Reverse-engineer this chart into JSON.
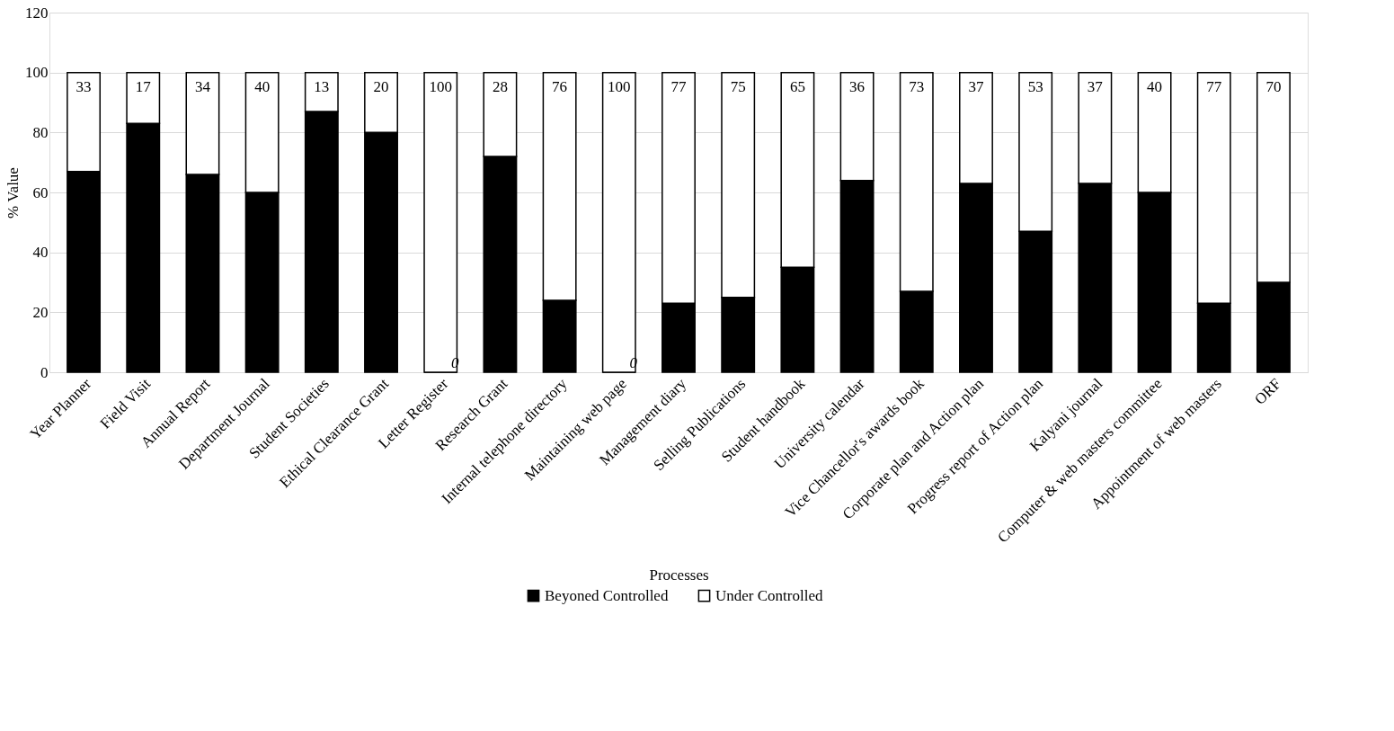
{
  "chart_data": {
    "type": "bar",
    "stacked": true,
    "xlabel": "Processes",
    "ylabel": "% Value",
    "categories": [
      "Year Planner",
      "Field Visit",
      "Annual Report",
      "Department Journal",
      "Student Societies",
      "Ethical Clearance Grant",
      "Letter Register",
      "Research Grant",
      "Internal telephone directory",
      "Maintaining web page",
      "Management diary",
      "Selling Publications",
      "Student handbook",
      "University calendar",
      "Vice Chancellor's awards book",
      "Corporate plan and Action plan",
      "Progress report of Action plan",
      "Kalyani journal",
      "Computer & web masters committee",
      "Appointment of web masters",
      "ORF"
    ],
    "series": [
      {
        "name": "Beyoned Controlled",
        "color": "#000000",
        "values": [
          67,
          83,
          66,
          60,
          87,
          80,
          0,
          72,
          24,
          0,
          23,
          25,
          35,
          64,
          27,
          63,
          47,
          63,
          60,
          23,
          30
        ],
        "value_labels": [
          null,
          null,
          null,
          null,
          null,
          null,
          "0",
          null,
          null,
          "0",
          null,
          null,
          null,
          null,
          null,
          null,
          null,
          null,
          null,
          null,
          null
        ]
      },
      {
        "name": "Under Controlled",
        "color": "#ffffff",
        "values": [
          33,
          17,
          34,
          40,
          13,
          20,
          100,
          28,
          76,
          100,
          77,
          75,
          65,
          36,
          73,
          37,
          53,
          37,
          40,
          77,
          70
        ],
        "value_labels": [
          "33",
          "17",
          "34",
          "40",
          "13",
          "20",
          "100",
          "28",
          "76",
          "100",
          "77",
          "75",
          "65",
          "36",
          "73",
          "37",
          "53",
          "37",
          "40",
          "77",
          "70"
        ]
      }
    ],
    "ylim": [
      0,
      120
    ],
    "yticks": [
      0,
      20,
      40,
      60,
      80,
      100,
      120
    ],
    "grid": "y",
    "legend": "bottom"
  }
}
